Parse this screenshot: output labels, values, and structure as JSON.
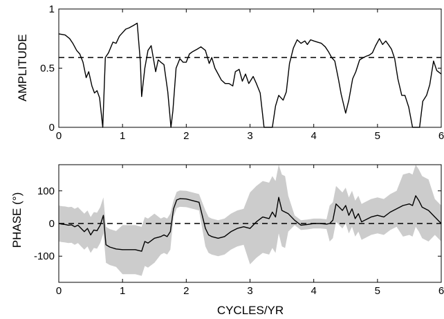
{
  "chart_data": [
    {
      "type": "line",
      "ylabel": "AMPLITUDE",
      "xlabel": "",
      "xlim": [
        0,
        6
      ],
      "ylim": [
        0,
        1
      ],
      "xticks": [
        "0",
        "1",
        "2",
        "3",
        "4",
        "5",
        "6"
      ],
      "yticks": [
        "0",
        "0.5",
        "1"
      ],
      "reference_line": 0.59,
      "series": [
        {
          "x": [
            0,
            0.1,
            0.17,
            0.22,
            0.28,
            0.33,
            0.38,
            0.43,
            0.47,
            0.52,
            0.56,
            0.6,
            0.64,
            0.69,
            0.73,
            0.78,
            0.85,
            0.9,
            0.95,
            1.0,
            1.05,
            1.1,
            1.17,
            1.23,
            1.28,
            1.3,
            1.35,
            1.4,
            1.45,
            1.52,
            1.56,
            1.6,
            1.65,
            1.71,
            1.76,
            1.79,
            1.84,
            1.9,
            1.95,
            2.0,
            2.05,
            2.1,
            2.17,
            2.23,
            2.3,
            2.36,
            2.4,
            2.45,
            2.5,
            2.55,
            2.61,
            2.67,
            2.73,
            2.77,
            2.83,
            2.88,
            2.93,
            2.98,
            3.05,
            3.1,
            3.16,
            3.22,
            3.29,
            3.35,
            3.4,
            3.45,
            3.52,
            3.57,
            3.62,
            3.68,
            3.74,
            3.8,
            3.86,
            3.9,
            3.95,
            4.0,
            4.06,
            4.12,
            4.18,
            4.23,
            4.28,
            4.33,
            4.39,
            4.43,
            4.5,
            4.55,
            4.61,
            4.66,
            4.72,
            4.78,
            4.82,
            4.87,
            4.92,
            4.97,
            5.03,
            5.08,
            5.13,
            5.17,
            5.22,
            5.27,
            5.32,
            5.38,
            5.43,
            5.49,
            5.55,
            5.61,
            5.66,
            5.71,
            5.77,
            5.82,
            5.88,
            5.93,
            6.0
          ],
          "y": [
            0.79,
            0.78,
            0.75,
            0.71,
            0.65,
            0.62,
            0.55,
            0.42,
            0.47,
            0.35,
            0.29,
            0.31,
            0.25,
            0.0,
            0.59,
            0.63,
            0.72,
            0.71,
            0.77,
            0.8,
            0.83,
            0.84,
            0.86,
            0.88,
            0.55,
            0.26,
            0.5,
            0.65,
            0.69,
            0.47,
            0.57,
            0.55,
            0.53,
            0.3,
            0.0,
            0.14,
            0.5,
            0.58,
            0.55,
            0.55,
            0.62,
            0.64,
            0.66,
            0.68,
            0.65,
            0.54,
            0.59,
            0.5,
            0.45,
            0.4,
            0.37,
            0.37,
            0.35,
            0.47,
            0.49,
            0.39,
            0.45,
            0.37,
            0.43,
            0.37,
            0.29,
            0.0,
            0.0,
            0.0,
            0.18,
            0.27,
            0.23,
            0.3,
            0.54,
            0.67,
            0.74,
            0.71,
            0.73,
            0.7,
            0.74,
            0.73,
            0.72,
            0.71,
            0.68,
            0.64,
            0.59,
            0.56,
            0.4,
            0.28,
            0.12,
            0.23,
            0.41,
            0.47,
            0.57,
            0.59,
            0.6,
            0.61,
            0.63,
            0.69,
            0.75,
            0.7,
            0.73,
            0.7,
            0.66,
            0.58,
            0.41,
            0.27,
            0.27,
            0.17,
            0.0,
            0.0,
            0.0,
            0.22,
            0.27,
            0.36,
            0.56,
            0.48,
            0.45
          ]
        }
      ]
    },
    {
      "type": "line",
      "ylabel": "PHASE (°)",
      "xlabel": "CYCLES/YR",
      "xlim": [
        0,
        6
      ],
      "ylim": [
        -180,
        180
      ],
      "xticks": [
        "0",
        "1",
        "2",
        "3",
        "4",
        "5",
        "6"
      ],
      "yticks": [
        "-100",
        "0",
        "100"
      ],
      "reference_line": 0,
      "confidence_band_color": "#cccccc",
      "series": [
        {
          "x": [
            0,
            0.05,
            0.1,
            0.15,
            0.2,
            0.25,
            0.3,
            0.35,
            0.4,
            0.45,
            0.5,
            0.55,
            0.6,
            0.65,
            0.7,
            0.74,
            0.8,
            0.9,
            1.0,
            1.1,
            1.2,
            1.3,
            1.35,
            1.4,
            1.5,
            1.6,
            1.65,
            1.7,
            1.75,
            1.8,
            1.85,
            1.9,
            2.0,
            2.1,
            2.2,
            2.3,
            2.35,
            2.4,
            2.5,
            2.6,
            2.7,
            2.8,
            2.9,
            3.0,
            3.1,
            3.2,
            3.3,
            3.35,
            3.4,
            3.45,
            3.5,
            3.55,
            3.6,
            3.7,
            3.8,
            3.9,
            4.0,
            4.1,
            4.2,
            4.25,
            4.3,
            4.35,
            4.4,
            4.45,
            4.5,
            4.55,
            4.6,
            4.65,
            4.7,
            4.75,
            4.8,
            4.9,
            5.0,
            5.1,
            5.2,
            5.3,
            5.4,
            5.5,
            5.55,
            5.6,
            5.65,
            5.7,
            5.8,
            5.9,
            6.0
          ],
          "y": [
            0,
            -2,
            -3,
            -5,
            -4,
            -10,
            -5,
            -15,
            -25,
            -15,
            -35,
            -20,
            -22,
            -5,
            25,
            -65,
            -72,
            -78,
            -80,
            -80,
            -80,
            -85,
            -55,
            -60,
            -45,
            -40,
            -35,
            -40,
            -25,
            45,
            72,
            76,
            75,
            70,
            65,
            -15,
            -35,
            -40,
            -45,
            -40,
            -25,
            -15,
            -10,
            -15,
            5,
            20,
            15,
            35,
            20,
            80,
            40,
            35,
            30,
            10,
            -5,
            -3,
            0,
            0,
            -2,
            0,
            10,
            60,
            50,
            40,
            55,
            25,
            45,
            15,
            30,
            5,
            10,
            20,
            25,
            20,
            35,
            45,
            55,
            60,
            55,
            85,
            70,
            50,
            40,
            20,
            0
          ]
        }
      ]
    }
  ]
}
